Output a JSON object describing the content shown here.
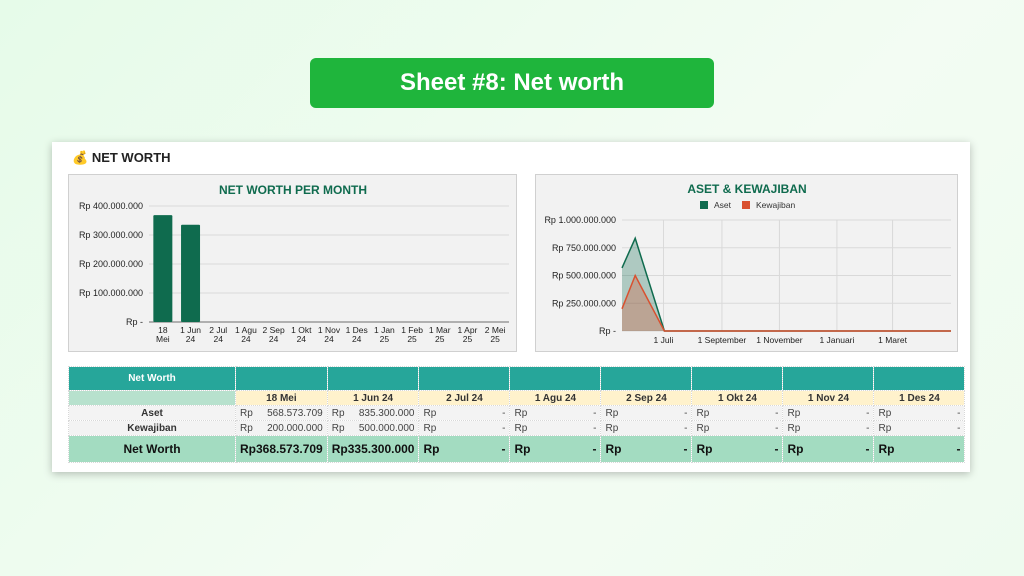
{
  "banner": {
    "title": "Sheet #8: Net worth"
  },
  "sheet": {
    "icon": "money-bag-icon",
    "emoji": "💰",
    "title": "NET WORTH"
  },
  "chart_data": [
    {
      "type": "bar",
      "title": "NET WORTH PER MONTH",
      "categories": [
        "18 Mei",
        "1 Jun 24",
        "2 Jul 24",
        "1 Agu 24",
        "2 Sep 24",
        "1 Okt 24",
        "1 Nov 24",
        "1 Des 24",
        "1 Jan 25",
        "1 Feb 25",
        "1 Mar 25",
        "1 Apr 25",
        "2 Mei 25"
      ],
      "values": [
        368573709,
        335300000,
        0,
        0,
        0,
        0,
        0,
        0,
        0,
        0,
        0,
        0,
        0
      ],
      "ylim": [
        0,
        400000000
      ],
      "yticks": [
        "Rp -",
        "Rp 100.000.000",
        "Rp 200.000.000",
        "Rp 300.000.000",
        "Rp 400.000.000"
      ],
      "color": "#0f6b4e",
      "grid": true
    },
    {
      "type": "area",
      "title": "ASET & KEWAJIBAN",
      "legend": "top",
      "x": [
        "2024-05-18",
        "2024-06-01",
        "2024-07-02",
        "2024-08-01",
        "2024-09-02",
        "2024-10-01",
        "2024-11-01",
        "2024-12-01",
        "2025-01-01",
        "2025-02-01",
        "2025-03-01",
        "2025-04-01",
        "2025-05-02"
      ],
      "series": [
        {
          "name": "Aset",
          "color": "#0f6b4e",
          "values": [
            568573709,
            835300000,
            0,
            0,
            0,
            0,
            0,
            0,
            0,
            0,
            0,
            0,
            0
          ]
        },
        {
          "name": "Kewajiban",
          "color": "#d9502f",
          "values": [
            200000000,
            500000000,
            0,
            0,
            0,
            0,
            0,
            0,
            0,
            0,
            0,
            0,
            0
          ]
        }
      ],
      "ylim": [
        0,
        1000000000
      ],
      "yticks": [
        "Rp -",
        "Rp 250.000.000",
        "Rp 500.000.000",
        "Rp 750.000.000",
        "Rp 1.000.000.000"
      ],
      "xticks": [
        {
          "date": "2024-07-01",
          "label": "1 Juli"
        },
        {
          "date": "2024-09-01",
          "label": "1 September"
        },
        {
          "date": "2024-11-01",
          "label": "1 November"
        },
        {
          "date": "2025-01-01",
          "label": "1 Januari"
        },
        {
          "date": "2025-03-01",
          "label": "1 Maret"
        }
      ],
      "grid": true
    }
  ],
  "table": {
    "header": "Net Worth",
    "dates": [
      "18 Mei",
      "1 Jun 24",
      "2 Jul 24",
      "1 Agu 24",
      "2 Sep 24",
      "1 Okt 24",
      "1 Nov 24",
      "1 Des 24"
    ],
    "currency": "Rp",
    "rows": [
      {
        "label": "Aset",
        "values": [
          "568.573.709",
          "835.300.000",
          "-",
          "-",
          "-",
          "-",
          "-",
          "-"
        ]
      },
      {
        "label": "Kewajiban",
        "values": [
          "200.000.000",
          "500.000.000",
          "-",
          "-",
          "-",
          "-",
          "-",
          "-"
        ]
      }
    ],
    "total": {
      "label": "Net Worth",
      "values": [
        "368.573.709",
        "335.300.000",
        "-",
        "-",
        "-",
        "-",
        "-",
        "-"
      ]
    }
  }
}
